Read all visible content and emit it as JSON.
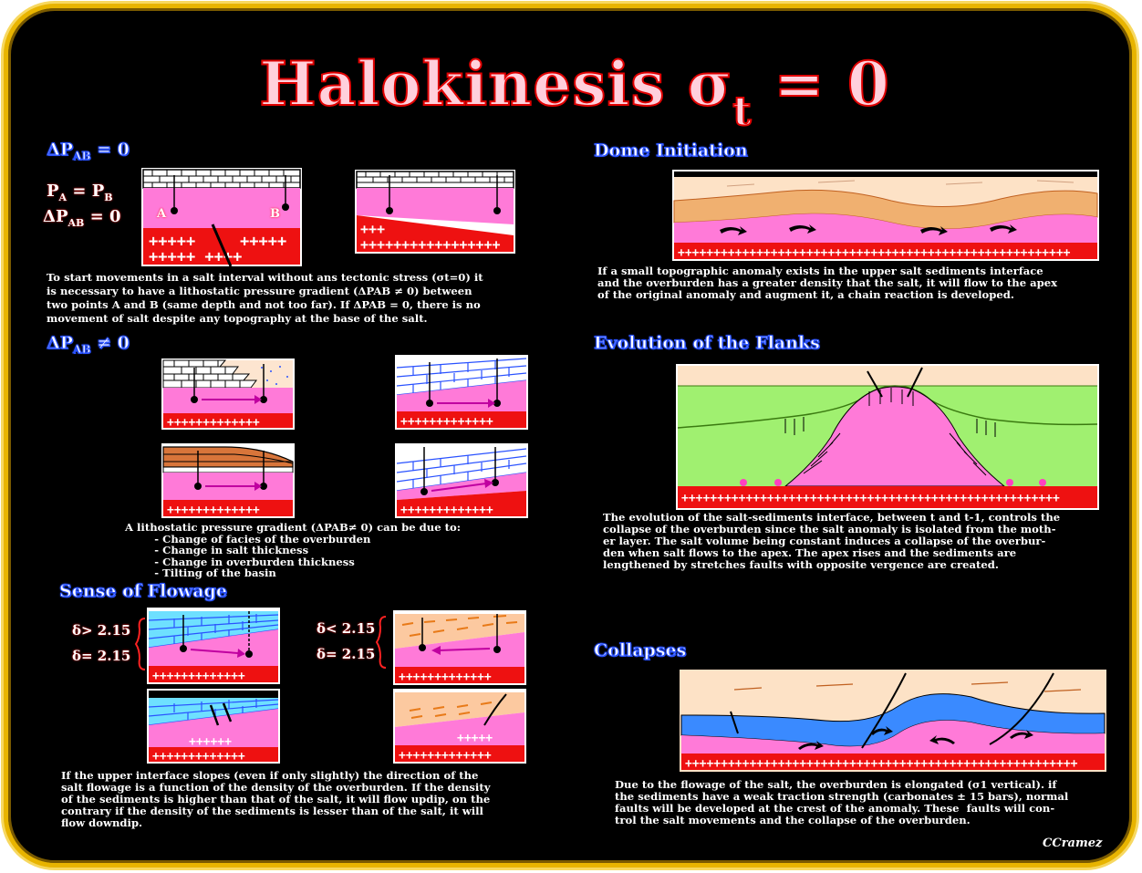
{
  "title": {
    "main": "Halokinesis σ",
    "sub": "t",
    "tail": " = 0"
  },
  "sections": {
    "delta_zero": {
      "label": "ΔP",
      "sub": "AB",
      "tail": " = 0"
    },
    "delta_nonzero": {
      "label": "ΔP",
      "sub": "AB",
      "tail": " ≠ 0"
    },
    "sense": {
      "label": "Sense of Flowage"
    },
    "dome": {
      "label": "Dome Initiation"
    },
    "flanks": {
      "label": "Evolution of the Flanks"
    },
    "collapses": {
      "label": "Collapses"
    }
  },
  "equations": {
    "pa_pb": {
      "a": "P",
      "as": "A",
      "mid": " = P",
      "bs": "B"
    },
    "dp_zero": {
      "a": "ΔP",
      "as": "AB",
      "tail": " = 0"
    }
  },
  "density": {
    "gt": "δ> 2.15",
    "eq1": "δ= 2.15",
    "lt": "δ< 2.15",
    "eq2": "δ= 2.15"
  },
  "points": {
    "a": "A",
    "b": "B"
  },
  "texts": {
    "start": "To start movements in a salt interval without ans tectonic stress (σt=0) it\nis necessary to have a lithostatic pressure gradient (ΔPAB ≠ 0) between\ntwo points A and B (same depth and not too far). If ΔPAB = 0, there is no\nmovement of salt despite any topography at the base of the salt.",
    "gradient": "A lithostatic pressure gradient (ΔPAB≠ 0) can be due to:\n        - Change of facies of the overburden\n        - Change in salt thickness\n        - Change in overburden thickness\n        - Tilting of the basin",
    "upper": "If the upper interface slopes (even if only slightly) the direction of the\nsalt flowage is a function of the density of the overburden. If the density\nof the sediments is higher than that of the salt, it will flow updip, on the\ncontrary if the density of the sediments is lesser than of the salt, it will\nflow downdip.",
    "dome": "If a small topographic anomaly exists in the upper salt sediments interface\nand the overburden has a greater density that the salt, it will flow to the apex\nof the original anomaly and augment it, a chain reaction is developed.",
    "flanks": "The evolution of the salt-sediments interface, between t and t-1, controls the\ncollapse of the overburden since the salt anomaly is isolated from the moth-\ner layer. The salt volume being constant induces a collapse of the overbur-\nden when salt flows to the apex. The apex rises and the sediments are\nlengthened by stretches faults with opposite vergence are created.",
    "collapses": "Due to the flowage of the salt, the overburden is elongated (σ1 vertical). if\nthe sediments have a weak traction strength (carbonates ± 15 bars), normal\nfaults will be developed at the crest of the anomaly. These  faults will con-\ntrol the salt movements and the collapse of the overburden."
  },
  "signature": "CCramez",
  "colors": {
    "frame": "#e8b400",
    "salt": "#ff7ad8",
    "basement": "#ee1111",
    "header_glow": "#2a52ff",
    "title_stroke": "#e00000"
  }
}
